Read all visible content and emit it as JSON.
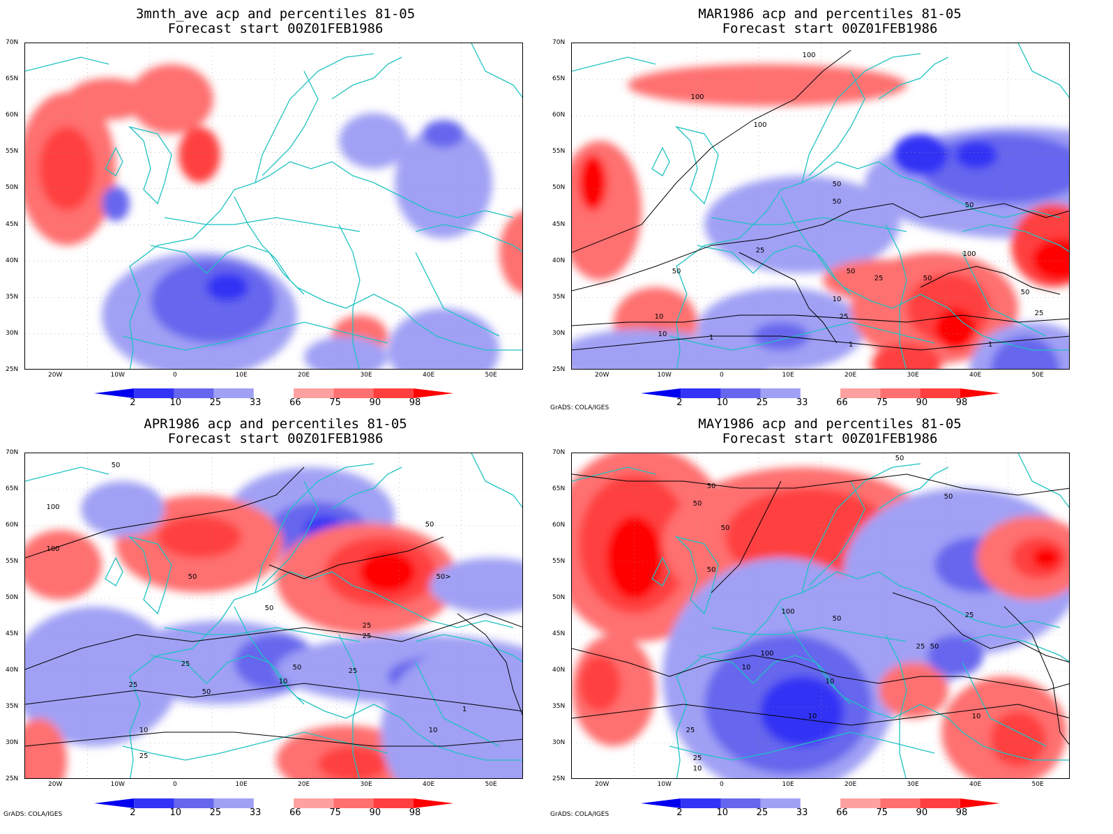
{
  "panels": [
    {
      "title1": "3mnth_ave acp and percentiles 81-05",
      "title2": "Forecast start 00Z01FEB1986",
      "credit": ""
    },
    {
      "title1": "MAR1986 acp and percentiles 81-05",
      "title2": "Forecast start 00Z01FEB1986",
      "credit": "GrADS: COLA/IGES"
    },
    {
      "title1": "APR1986 acp and percentiles 81-05",
      "title2": "Forecast start 00Z01FEB1986",
      "credit": "GrADS: COLA/IGES"
    },
    {
      "title1": "MAY1986 acp and percentiles 81-05",
      "title2": "Forecast start 00Z01FEB1986",
      "credit": "GrADS: COLA/IGES"
    }
  ],
  "lat_labels": [
    "70N",
    "65N",
    "60N",
    "55N",
    "50N",
    "45N",
    "40N",
    "35N",
    "30N",
    "25N"
  ],
  "lon_labels": [
    "20W",
    "10W",
    "0",
    "10E",
    "20E",
    "30E",
    "40E",
    "50E"
  ],
  "colorbar": {
    "labels": [
      "2",
      "10",
      "25",
      "33",
      "66",
      "75",
      "90",
      "98"
    ],
    "colors": [
      "#0000ee",
      "#3333f5",
      "#6666ee",
      "#a0a0f5",
      "#ffffff",
      "#ffa0a0",
      "#ff7070",
      "#ff3f3f",
      "#ff0000"
    ]
  },
  "contour_labels": {
    "p1": [
      "100",
      "100",
      "100",
      "50",
      "50",
      "50",
      "25",
      "50",
      "50",
      "25",
      "50",
      "100",
      "10",
      "50",
      "10",
      "25",
      "25",
      "1",
      "10",
      "1",
      "1"
    ],
    "p2": [
      "50",
      "100",
      "100",
      "50",
      "50",
      "50>",
      "50",
      "25",
      "25",
      "25",
      "50",
      "25",
      "10",
      "25",
      "50",
      "10",
      "10",
      "1",
      "25",
      "1"
    ],
    "p3": [
      "50",
      "50",
      "50",
      "50",
      "50",
      "50",
      "100",
      "50",
      "25",
      "100",
      "10",
      "10",
      "10",
      "50",
      "25",
      "25",
      "10",
      "10",
      "25"
    ]
  },
  "map_colors": {
    "coast": "#1fc2c2",
    "contour": "#000000",
    "grid": "#999999"
  }
}
